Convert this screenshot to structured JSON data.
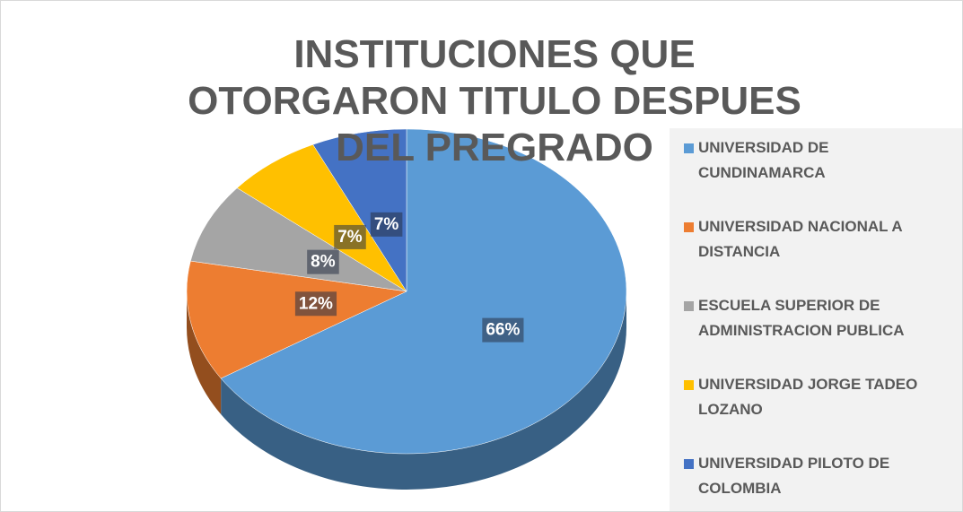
{
  "chart_data": {
    "type": "pie",
    "title": "INSTITUCIONES QUE OTORGARON TITULO DESPUES DEL PREGRADO",
    "categories": [
      "UNIVERSIDAD DE CUNDINAMARCA",
      "UNIVERSIDAD NACIONAL A DISTANCIA",
      "ESCUELA SUPERIOR DE ADMINISTRACION PUBLICA",
      "UNIVERSIDAD JORGE TADEO LOZANO",
      "UNIVERSIDAD PILOTO DE COLOMBIA"
    ],
    "values": [
      66,
      12,
      8,
      7,
      7
    ],
    "value_labels": [
      "66%",
      "12%",
      "8%",
      "7%",
      "7%"
    ],
    "colors": [
      "#5b9bd5",
      "#ed7d31",
      "#a5a5a5",
      "#ffc000",
      "#4472c4"
    ],
    "legend": "right"
  }
}
